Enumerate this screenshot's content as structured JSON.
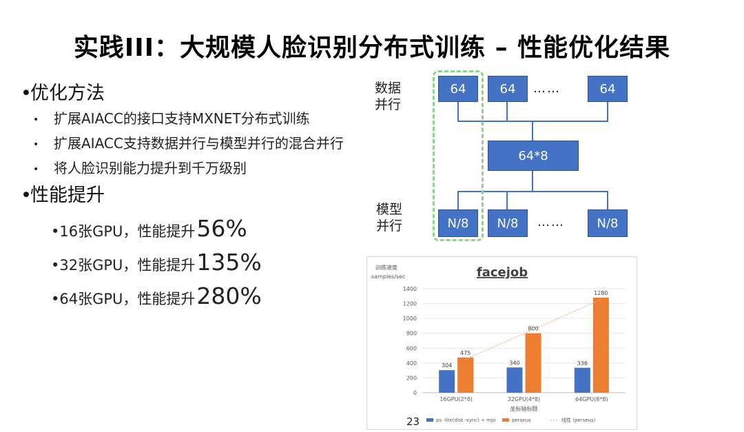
{
  "title": "实践III：大规模人脸识别分布式训练 – 性能优化结果",
  "bullets": {
    "opt_method": "优化方法",
    "opt_items": [
      "扩展AIACC的接口支持MXNET分布式训练",
      "扩展AIACC支持数据并行与模型并行的混合并行",
      "将人脸识别能力提升到千万级别"
    ],
    "perf_title": "性能提升",
    "perf_items": [
      {
        "prefix": "•16张GPU，性能提升",
        "value": "56%"
      },
      {
        "prefix": "•32张GPU，性能提升",
        "value": "135%"
      },
      {
        "prefix": "•64张GPU，性能提升",
        "value": "280%"
      }
    ]
  },
  "diagram": {
    "data_parallel_label": "数据\n并行",
    "model_parallel_label": "模型\n并行",
    "top_boxes": [
      "64",
      "64",
      "64"
    ],
    "middle_box": "64*8",
    "bottom_boxes": [
      "N/8",
      "N/8",
      "N/8"
    ],
    "ellipsis": "……",
    "colors": {
      "box": "#4472c4",
      "line": "#4472c4",
      "dash": "#8fd18f"
    }
  },
  "chart_data": {
    "type": "bar",
    "title": "facejob",
    "ylabel": "训练速度\nsamples/sec",
    "xlabel": "坐标轴标题",
    "categories": [
      "16GPU(2*8)",
      "32GPU(4*8)",
      "64GPU(8*8)"
    ],
    "ylim": [
      0,
      1400
    ],
    "yticks": [
      0,
      200,
      400,
      600,
      800,
      1000,
      1200,
      1400
    ],
    "series": [
      {
        "name": "ps -lite(dist -sync) + mpi",
        "values": [
          304,
          340,
          336
        ],
        "color": "#4472c4"
      },
      {
        "name": "perseus",
        "values": [
          475,
          800,
          1280
        ],
        "color": "#ed7d31"
      }
    ],
    "trendline": {
      "name": "线性 (perseus)",
      "color": "#f4b183"
    },
    "grid": true,
    "legend": "bottom"
  },
  "page_number": "23"
}
